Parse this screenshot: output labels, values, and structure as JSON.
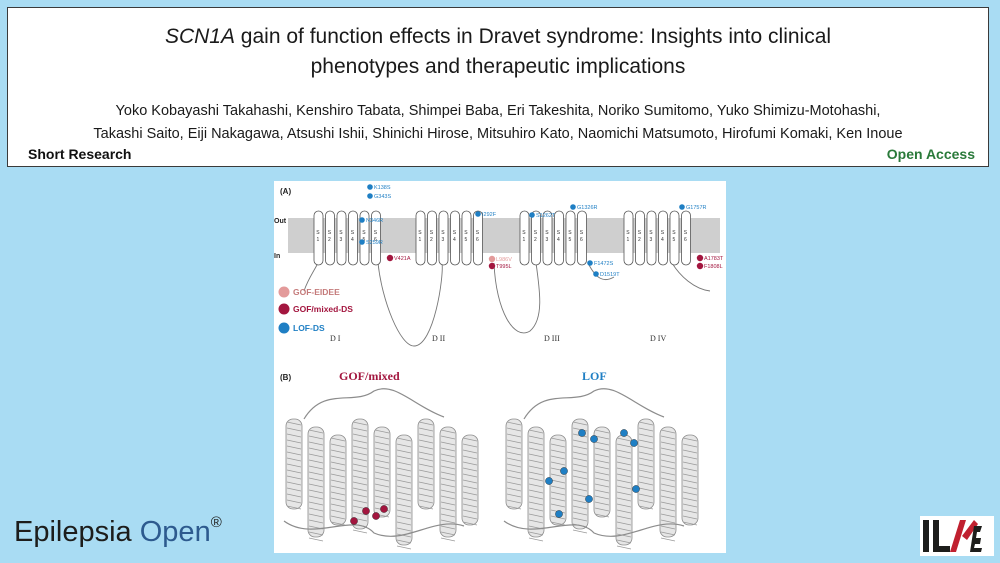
{
  "header": {
    "title_italic": "SCN1A",
    "title_rest_line1": " gain of function effects in Dravet syndrome: Insights into clinical",
    "title_line2": "phenotypes and therapeutic implications",
    "authors_line1": "Yoko Kobayashi Takahashi, Kenshiro Tabata, Shimpei Baba, Eri Takeshita, Noriko Sumitomo, Yuko Shimizu-Motohashi,",
    "authors_line2": "Takashi Saito, Eiji Nakagawa, Atsushi Ishii, Shinichi Hirose, Mitsuhiro Kato, Naomichi Matsumoto, Hirofumi Komaki, Ken Inoue",
    "article_type": "Short Research",
    "access": "Open Access"
  },
  "figure": {
    "panel_a": "(A)",
    "panel_b": "(B)",
    "out_label": "Out",
    "in_label": "In",
    "domains": [
      "D I",
      "D II",
      "D III",
      "D IV"
    ],
    "segment_labels": [
      "S1",
      "S2",
      "S3",
      "S4",
      "S5",
      "S6"
    ],
    "legend": [
      {
        "label": "GOF-EIDEE",
        "color": "#e39a9a"
      },
      {
        "label": "GOF/mixed-DS",
        "color": "#a3163f"
      },
      {
        "label": "LOF-DS",
        "color": "#1f7fc4"
      }
    ],
    "variants_lof": [
      "K138S",
      "G343S",
      "N346R",
      "S259R",
      "I292F",
      "G1326R",
      "S1262T",
      "F1472S",
      "D1519T",
      "G1757R"
    ],
    "variants_gof": [
      "V421A",
      "T995L",
      "A1783T",
      "F1808L"
    ],
    "variants_eidee": [
      "L986V"
    ],
    "panel_b_left_title": "GOF/mixed",
    "panel_b_right_title": "LOF"
  },
  "journal": {
    "name": "Epilepsia",
    "name_open": "Open",
    "reg": "®",
    "society_logo": "ILAE"
  },
  "colors": {
    "background": "#a9dcf3",
    "gof": "#a3163f",
    "eidee": "#e39a9a",
    "lof": "#1f7fc4",
    "open_access": "#2a7a3a"
  }
}
